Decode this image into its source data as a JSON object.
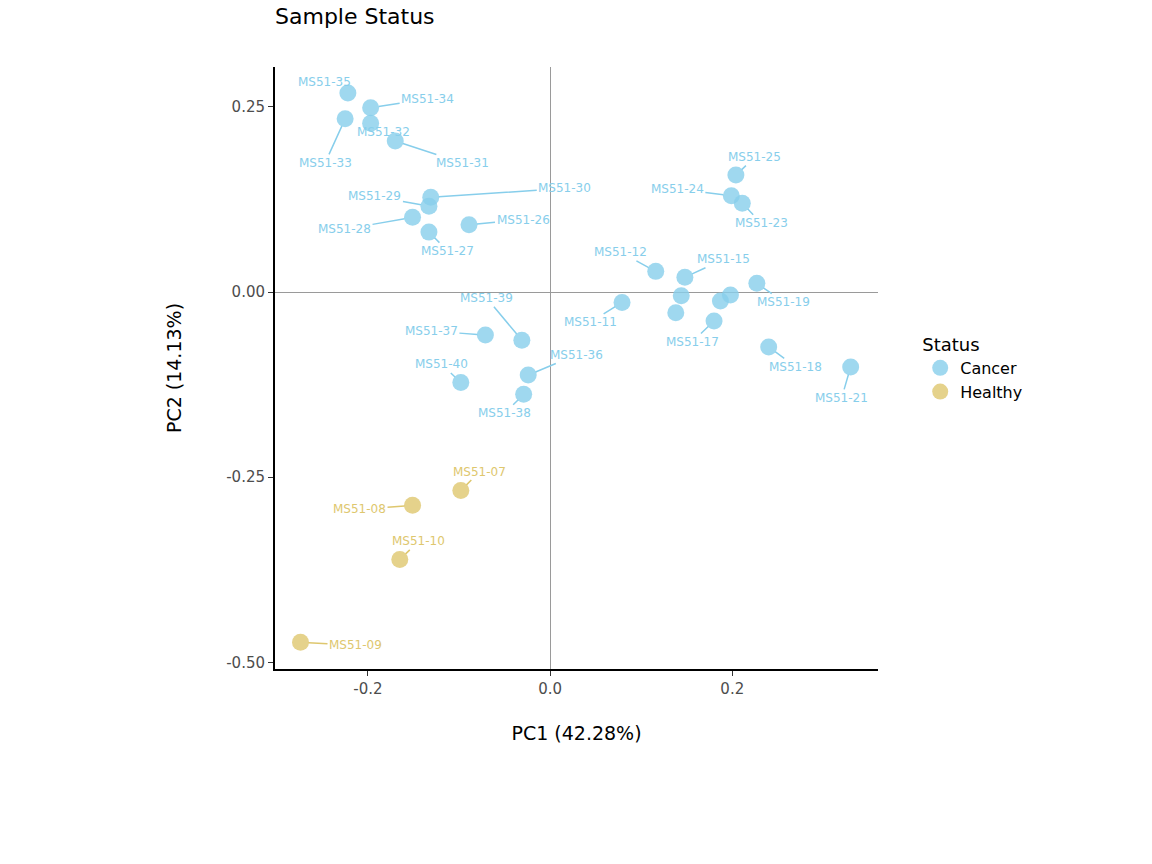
{
  "chart_data": {
    "type": "scatter",
    "title": "Sample Status",
    "x_label": "PC1 (42.28%)",
    "y_label": "PC2 (14.13%)",
    "legend_title": "Status",
    "legend": "right",
    "grid": false,
    "xlim": [
      -0.302,
      0.36
    ],
    "ylim": [
      -0.509,
      0.304
    ],
    "xticks": [
      -0.2,
      {
        "value": 0,
        "label": "0.0"
      },
      0.2
    ],
    "yticks": [
      0.25,
      {
        "value": 0,
        "label": "0.00"
      },
      -0.25,
      {
        "value": -0.5,
        "label": "-0.50"
      }
    ],
    "series": [
      {
        "name": "Cancer",
        "color": "#87CEEB",
        "marker": "circle",
        "x": [
          -0.222,
          -0.197,
          -0.197,
          -0.225,
          -0.17,
          -0.131,
          -0.133,
          -0.151,
          -0.133,
          -0.089,
          0.204,
          0.199,
          0.211,
          0.116,
          0.148,
          0.227,
          0.079,
          0.144,
          0.187,
          0.198,
          0.138,
          0.18,
          0.24,
          0.33,
          -0.031,
          -0.071,
          -0.024,
          -0.029,
          -0.098
        ],
        "y": [
          0.269,
          0.249,
          0.228,
          0.234,
          0.204,
          0.128,
          0.116,
          0.101,
          0.081,
          0.091,
          0.158,
          0.13,
          0.12,
          0.028,
          0.02,
          0.012,
          -0.014,
          -0.005,
          -0.012,
          -0.004,
          -0.028,
          -0.039,
          -0.074,
          -0.101,
          -0.065,
          -0.058,
          -0.112,
          -0.138,
          -0.122
        ],
        "labels": [
          "MS51-35",
          "MS51-34",
          "MS51-32",
          "MS51-33",
          "MS51-31",
          "MS51-30",
          "MS51-29",
          "MS51-28",
          "MS51-27",
          "MS51-26",
          "MS51-25",
          "MS51-24",
          "MS51-23",
          "MS51-12",
          "MS51-15",
          "MS51-19",
          "MS51-11",
          null,
          null,
          null,
          null,
          "MS51-17",
          "MS51-18",
          "MS51-21",
          "MS51-39",
          "MS51-37",
          "MS51-36",
          "MS51-38",
          "MS51-40"
        ]
      },
      {
        "name": "Healthy",
        "color": "#DEC76E",
        "marker": "circle",
        "x": [
          -0.098,
          -0.151,
          -0.165,
          -0.274
        ],
        "y": [
          -0.268,
          -0.288,
          -0.361,
          -0.473
        ],
        "labels": [
          "MS51-07",
          "MS51-08",
          "MS51-10",
          "MS51-09"
        ]
      }
    ]
  }
}
